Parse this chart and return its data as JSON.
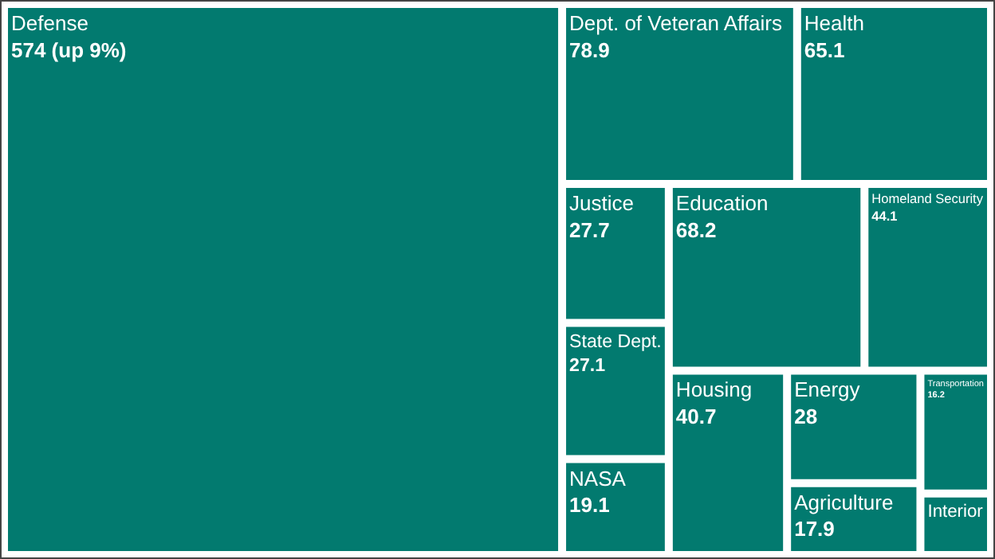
{
  "chart_data": {
    "type": "other",
    "categories": [
      "Defense",
      "Dept. of Veteran Affairs",
      "Health",
      "Justice",
      "State Dept.",
      "NASA",
      "Education",
      "Homeland Security",
      "Housing",
      "Energy",
      "Agriculture",
      "Transportation",
      "Interior"
    ],
    "values": [
      574,
      78.9,
      65.1,
      27.7,
      27.1,
      19.1,
      68.2,
      44.1,
      40.7,
      28,
      17.9,
      16.2,
      null
    ],
    "value_labels": [
      "574 (up 9%)",
      "78.9",
      "65.1",
      "27.7",
      "27.1",
      "19.1",
      "68.2",
      "44.1",
      "40.7",
      "28",
      "17.9",
      "16.2",
      null
    ],
    "color": "#027a6f"
  }
}
